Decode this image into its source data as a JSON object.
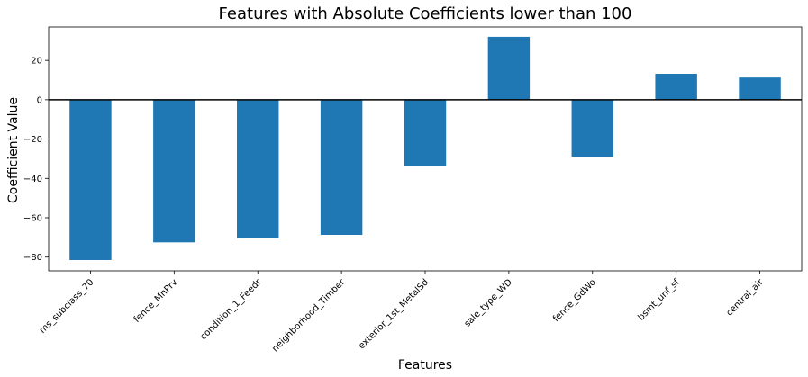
{
  "chart_data": {
    "type": "bar",
    "title": "Features with Absolute Coefficients lower than 100",
    "xlabel": "Features",
    "ylabel": "Coefficient Value",
    "categories": [
      "ms_subclass_70",
      "fence_MnPrv",
      "condition_1_Feedr",
      "neighborhood_Timber",
      "exterior_1st_MetalSd",
      "sale_type_WD",
      "fence_GdWo",
      "bsmt_unf_sf",
      "central_air"
    ],
    "values": [
      -81.5,
      -72.5,
      -70.3,
      -68.7,
      -33.5,
      32.0,
      -29.0,
      13.2,
      11.3
    ],
    "yticks": [
      20,
      0,
      -20,
      -40,
      -60,
      -80
    ],
    "ylim": [
      -87,
      37
    ],
    "grid": false,
    "zero_line": true,
    "bar_color": "#1f77b4"
  }
}
